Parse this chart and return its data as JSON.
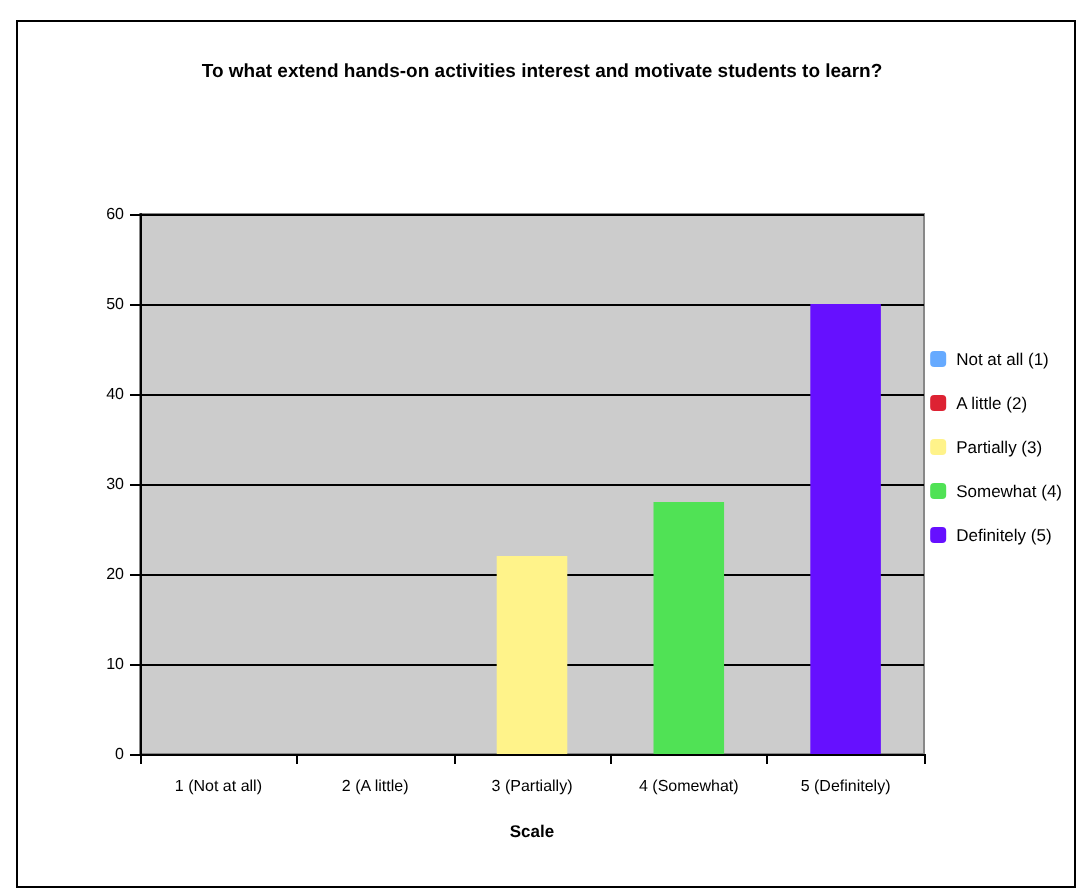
{
  "chart_data": {
    "type": "bar",
    "title": "To what extend hands-on activities interest and motivate students to learn?",
    "xlabel": "Scale",
    "categories": [
      "1 (Not at all)",
      "2 (A little)",
      "3 (Partially)",
      "4 (Somewhat)",
      "5 (Definitely)"
    ],
    "stacked": true,
    "series": [
      {
        "name": "Not at all (1)",
        "color": "#66aaff",
        "values": [
          0,
          null,
          null,
          null,
          null
        ]
      },
      {
        "name": "A little (2)",
        "color": "#dd2233",
        "values": [
          null,
          0,
          null,
          null,
          null
        ]
      },
      {
        "name": "Partially (3)",
        "color": "#fff38a",
        "values": [
          null,
          null,
          22,
          null,
          null
        ]
      },
      {
        "name": "Somewhat (4)",
        "color": "#50e255",
        "values": [
          null,
          null,
          null,
          28,
          null
        ]
      },
      {
        "name": "Definitely (5)",
        "color": "#6610ff",
        "values": [
          null,
          null,
          null,
          null,
          50
        ]
      }
    ],
    "ylim": [
      0,
      60
    ],
    "yticks": [
      0,
      10,
      20,
      30,
      40,
      50,
      60
    ],
    "grid": "y",
    "legend": "right"
  }
}
